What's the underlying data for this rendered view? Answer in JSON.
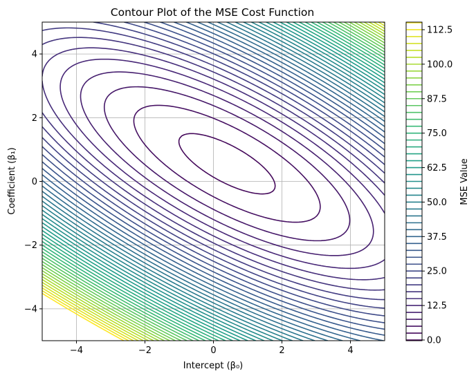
{
  "chart_data": {
    "type": "contour",
    "title": "Contour Plot of the MSE Cost Function",
    "xlabel": "Intercept (β₀)",
    "ylabel": "Coefficient (β₁)",
    "xlim": [
      -5,
      5
    ],
    "ylim": [
      -5,
      5
    ],
    "x_ticks": [
      -4,
      -2,
      0,
      2,
      4
    ],
    "y_ticks": [
      -4,
      -2,
      0,
      2,
      4
    ],
    "x_tick_labels": [
      "−4",
      "−2",
      "0",
      "2",
      "4"
    ],
    "y_tick_labels": [
      "−4",
      "−2",
      "0",
      "2",
      "4"
    ],
    "grid": true,
    "colormap": "viridis",
    "levels": {
      "min": 0.0,
      "max": 115.0,
      "step": 2.5
    },
    "colorbar": {
      "label": "MSE Value",
      "ticks": [
        0.0,
        12.5,
        25.0,
        37.5,
        50.0,
        62.5,
        75.0,
        87.5,
        100.0,
        112.5
      ],
      "tick_labels": [
        "0.0",
        "12.5",
        "25.0",
        "37.5",
        "50.0",
        "62.5",
        "75.0",
        "87.5",
        "100.0",
        "112.5"
      ]
    },
    "surface": {
      "form": "a*b0^2 + b*b1^2 + c*b0*b1 + d*b0 + e*b1 + f",
      "a": 1.0,
      "b": 2.2,
      "c": 2.18,
      "d": -2.0,
      "e": -3.3,
      "f": 2.9
    }
  }
}
